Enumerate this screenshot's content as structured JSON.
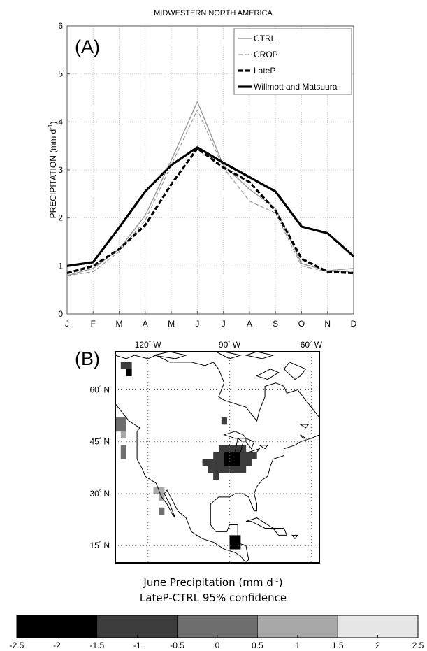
{
  "title": "MIDWESTERN NORTH AMERICA",
  "chart_data": [
    {
      "panel": "(A)",
      "type": "line",
      "ylabel": "PRECIPITATION (mm d",
      "ylabel_sup": "-1",
      "ylabel_end": ")",
      "categories": [
        "J",
        "F",
        "M",
        "A",
        "M",
        "J",
        "J",
        "A",
        "S",
        "O",
        "N",
        "D"
      ],
      "ylim": [
        0,
        6
      ],
      "yticks": [
        "0",
        "1",
        "2",
        "3",
        "4",
        "5",
        "6"
      ],
      "grid": true,
      "legend_position": "top-right",
      "series": [
        {
          "name": "CTRL",
          "style": "solid-thin",
          "color": "#9a9a9a",
          "values": [
            0.8,
            0.95,
            1.35,
            2.05,
            3.2,
            4.42,
            3.1,
            2.6,
            2.2,
            1.05,
            0.9,
            0.95
          ]
        },
        {
          "name": "CROP",
          "style": "dashed-thin",
          "color": "#9a9a9a",
          "values": [
            0.8,
            0.88,
            1.3,
            1.95,
            3.1,
            4.25,
            3.05,
            2.35,
            2.1,
            1.0,
            0.88,
            0.88
          ]
        },
        {
          "name": "LateP",
          "style": "dashed-thick",
          "color": "#000000",
          "values": [
            0.85,
            1.0,
            1.35,
            1.85,
            2.7,
            3.45,
            3.05,
            2.75,
            2.15,
            1.15,
            0.88,
            0.85
          ]
        },
        {
          "name": "Willmott and Matsuura",
          "style": "solid-thick",
          "color": "#000000",
          "values": [
            1.0,
            1.08,
            1.8,
            2.55,
            3.1,
            3.47,
            3.15,
            2.85,
            2.55,
            1.82,
            1.68,
            1.2
          ]
        }
      ]
    },
    {
      "panel": "(B)",
      "type": "heatmap",
      "lon_labels": [
        "120",
        "90",
        "60"
      ],
      "lon_suffix": "W",
      "lat_labels": [
        "60",
        "45",
        "30",
        "15"
      ],
      "lat_suffix": "N",
      "degree": "°",
      "caption_line1": "June Precipitation (mm d",
      "caption_sup": "-1",
      "caption_end": ")",
      "caption_line2": "LateP-CTRL  95% confidence",
      "colorbar": {
        "ticks": [
          "-2.5",
          "-2",
          "-1.5",
          "-1",
          "-0.5",
          "0",
          "0.5",
          "1",
          "1.5",
          "2",
          "2.5"
        ],
        "bins": [
          {
            "min": -2.5,
            "max": -1.5,
            "color": "#000000"
          },
          {
            "min": -1.5,
            "max": -0.5,
            "color": "#3c3c3c"
          },
          {
            "min": -0.5,
            "max": 0.5,
            "color": "#6e6e6e"
          },
          {
            "min": 0.5,
            "max": 1.5,
            "color": "#a8a8a8"
          },
          {
            "min": 1.5,
            "max": 2.5,
            "color": "#e6e6e6"
          }
        ]
      },
      "cells": [
        {
          "lon": -89,
          "lat": 39,
          "value": -2.0
        },
        {
          "lon": -91,
          "lat": 39,
          "value": -2.0
        },
        {
          "lon": -87,
          "lat": 39,
          "value": -2.0
        },
        {
          "lon": -89,
          "lat": 41,
          "value": -2.0
        },
        {
          "lon": -91,
          "lat": 41,
          "value": -2.0
        },
        {
          "lon": -87,
          "lat": 41,
          "value": -2.0
        },
        {
          "lon": -93,
          "lat": 39,
          "value": -1.0
        },
        {
          "lon": -95,
          "lat": 39,
          "value": -1.0
        },
        {
          "lon": -97,
          "lat": 39,
          "value": -1.0
        },
        {
          "lon": -85,
          "lat": 39,
          "value": -1.0
        },
        {
          "lon": -83,
          "lat": 39,
          "value": -1.0
        },
        {
          "lon": -93,
          "lat": 41,
          "value": -1.0
        },
        {
          "lon": -95,
          "lat": 41,
          "value": -1.0
        },
        {
          "lon": -85,
          "lat": 41,
          "value": -1.0
        },
        {
          "lon": -83,
          "lat": 41,
          "value": -1.0
        },
        {
          "lon": -81,
          "lat": 41,
          "value": -1.0
        },
        {
          "lon": -93,
          "lat": 43,
          "value": -1.0
        },
        {
          "lon": -91,
          "lat": 43,
          "value": -1.0
        },
        {
          "lon": -89,
          "lat": 43,
          "value": -1.0
        },
        {
          "lon": -87,
          "lat": 43,
          "value": -1.0
        },
        {
          "lon": -85,
          "lat": 43,
          "value": -1.0
        },
        {
          "lon": -97,
          "lat": 37,
          "value": -1.0
        },
        {
          "lon": -95,
          "lat": 37,
          "value": -1.0
        },
        {
          "lon": -93,
          "lat": 37,
          "value": -1.0
        },
        {
          "lon": -91,
          "lat": 37,
          "value": -1.0
        },
        {
          "lon": -89,
          "lat": 37,
          "value": -1.0
        },
        {
          "lon": -87,
          "lat": 37,
          "value": -1.0
        },
        {
          "lon": -85,
          "lat": 37,
          "value": -1.0
        },
        {
          "lon": -99,
          "lat": 39,
          "value": -1.0
        },
        {
          "lon": -95,
          "lat": 35,
          "value": -1.0
        },
        {
          "lon": -92,
          "lat": 51,
          "value": -1.0
        },
        {
          "lon": -127,
          "lat": 65,
          "value": -2.0
        },
        {
          "lon": -129,
          "lat": 67,
          "value": -1.0
        },
        {
          "lon": -127,
          "lat": 67,
          "value": -1.0
        },
        {
          "lon": -89,
          "lat": 15,
          "value": -2.0
        },
        {
          "lon": -87,
          "lat": 15,
          "value": -2.0
        },
        {
          "lon": -89,
          "lat": 17,
          "value": -2.0
        },
        {
          "lon": -87,
          "lat": 17,
          "value": -2.0
        },
        {
          "lon": -131,
          "lat": 49,
          "value": 0.0
        },
        {
          "lon": -129,
          "lat": 49,
          "value": 0.0
        },
        {
          "lon": -131,
          "lat": 51,
          "value": 0.0
        },
        {
          "lon": -129,
          "lat": 51,
          "value": 0.0
        },
        {
          "lon": -129,
          "lat": 47,
          "value": 1.0
        },
        {
          "lon": -129,
          "lat": 43,
          "value": 0.0
        },
        {
          "lon": -129,
          "lat": 41,
          "value": 0.0
        },
        {
          "lon": -117,
          "lat": 31,
          "value": 1.0
        },
        {
          "lon": -115,
          "lat": 31,
          "value": 1.0
        },
        {
          "lon": -115,
          "lat": 29,
          "value": 1.0
        },
        {
          "lon": -115,
          "lat": 25,
          "value": 0.0
        }
      ]
    }
  ]
}
